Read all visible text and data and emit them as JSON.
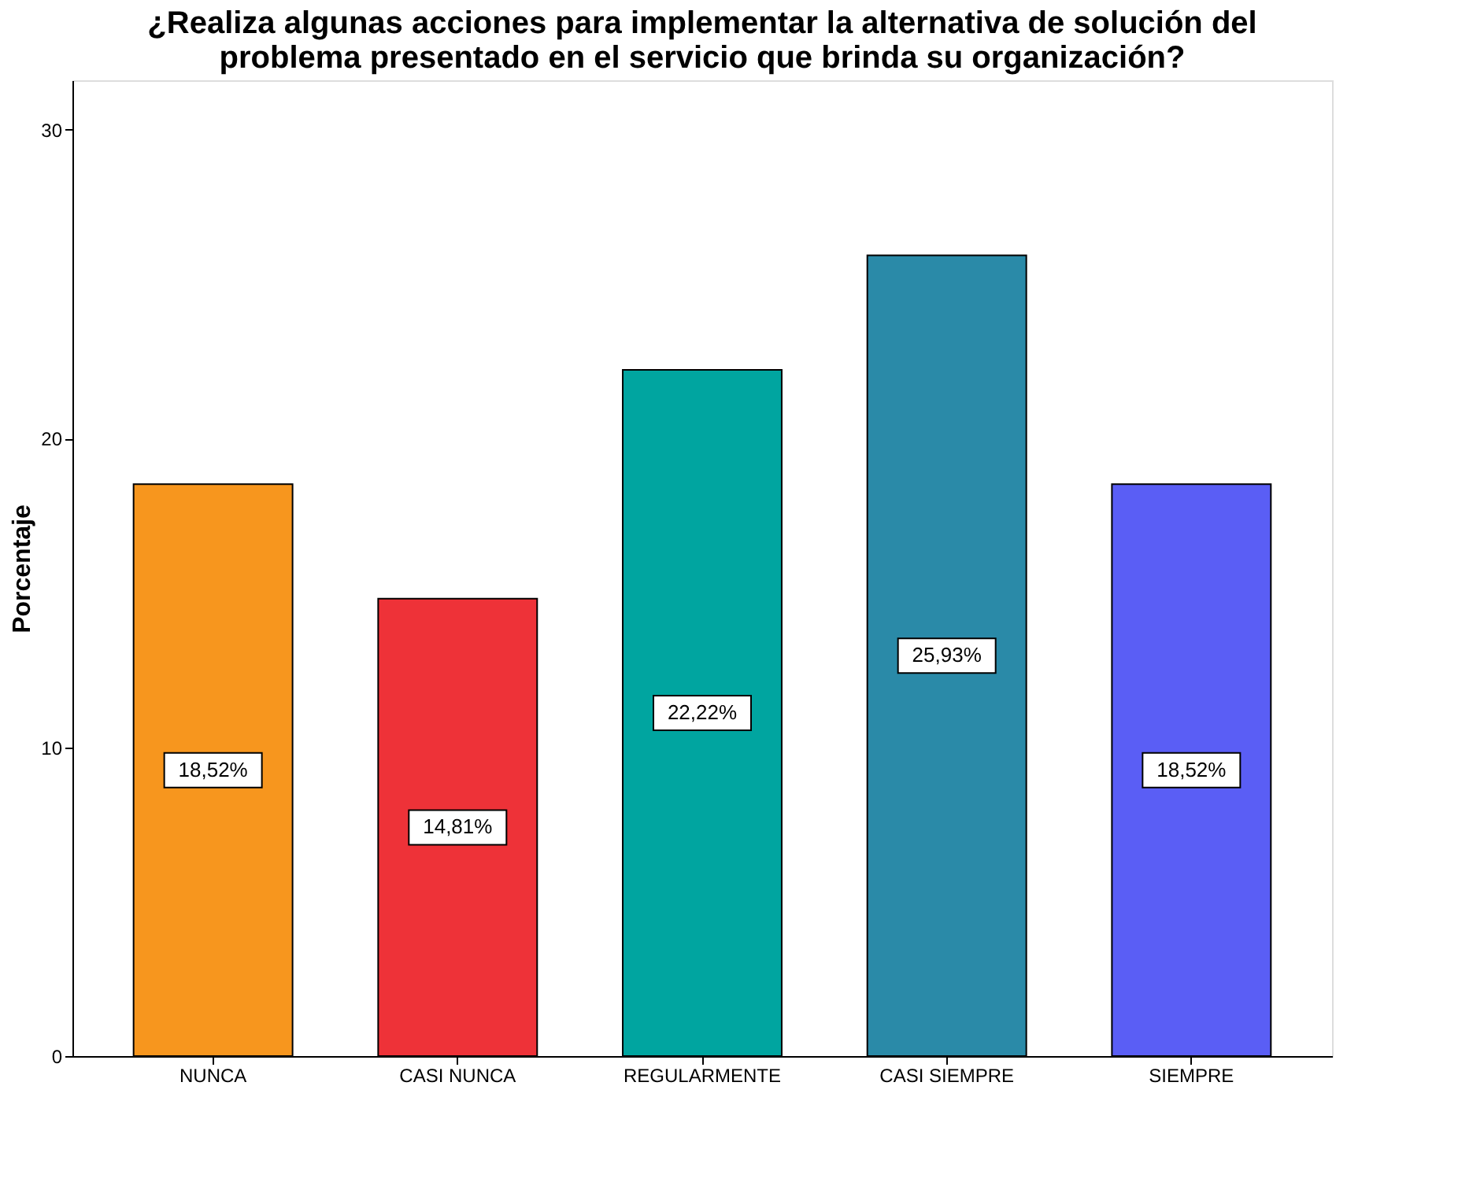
{
  "chart_data": {
    "type": "bar",
    "title": "¿Realiza algunas acciones para implementar la alternativa de solución del\nproblema presentado en el servicio que brinda su organización?",
    "ylabel": "Porcentaje",
    "categories": [
      "NUNCA",
      "CASI NUNCA",
      "REGULARMENTE",
      "CASI SIEMPRE",
      "SIEMPRE"
    ],
    "values": [
      18.52,
      14.81,
      22.22,
      25.93,
      18.52
    ],
    "value_labels": [
      "18,52%",
      "14,81%",
      "22,22%",
      "25,93%",
      "18,52%"
    ],
    "colors": [
      "#f7961e",
      "#ee3238",
      "#00a5a0",
      "#2a8aa8",
      "#5a5ef5"
    ],
    "ylim": [
      0,
      31.6
    ],
    "yticks": [
      0,
      10,
      20,
      30
    ],
    "grid": false,
    "legend": false
  }
}
